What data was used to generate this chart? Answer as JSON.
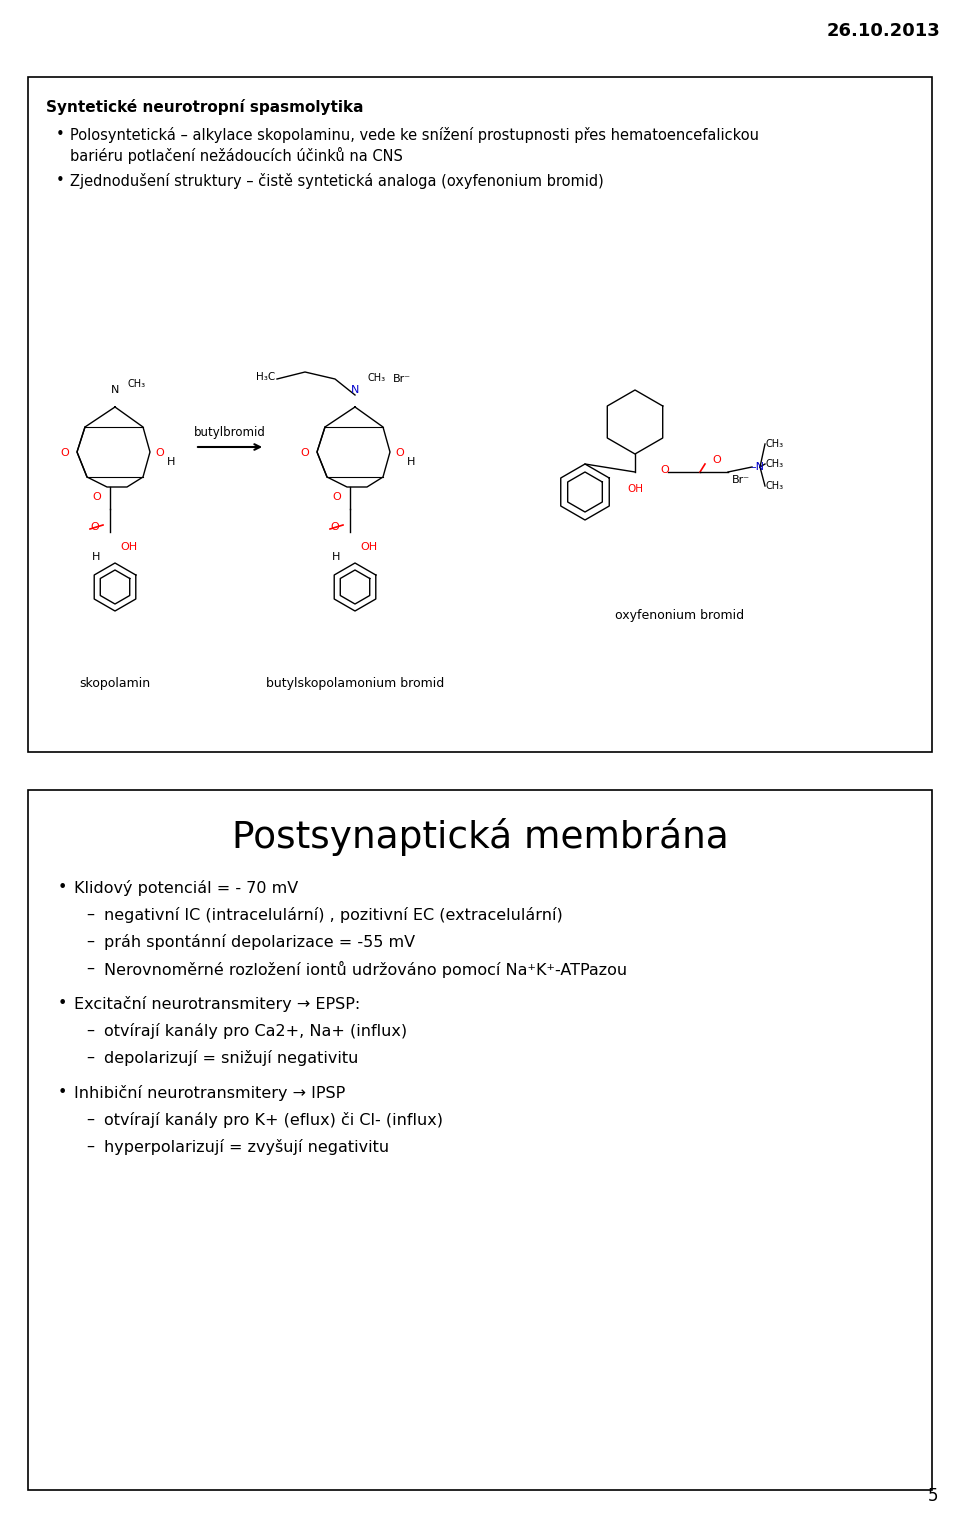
{
  "date_text": "26.10.2013",
  "page_number": "5",
  "bg_color": "#ffffff",
  "panel1": {
    "title": "Syntetické neurotropní spasmolytika",
    "bullets": [
      "Polosyntetická – alkylace skopolaminu, vede ke snížení prostupnosti přes hematoencefalickou bariéru potlačení nežádoucích účinků na CNS",
      "Zjednodušení struktury – čistě syntetická analoga (oxyfenonium bromid)"
    ],
    "chem_labels": {
      "skopolamin": "skopolamin",
      "butylbromid": "butylbromid",
      "butyl_product": "butylskopolamonium bromid",
      "oxyfenonium": "oxyfenonium bromid"
    }
  },
  "panel2": {
    "title": "Postsynaptická membrána",
    "main_bullets": [
      {
        "text": "Klidový potenciál = - 70 mV",
        "sub_bullets": [
          "negativní IC (intracelulární) , pozitivní EC (extracelulární)",
          "práh spontánní depolarizace = -55 mV",
          "Nerovnoměrné rozložení iontů udržováno pomocí Na⁺K⁺-ATPazou"
        ]
      },
      {
        "text": "Excitační neurotransmitery → EPSP:",
        "sub_bullets": [
          "otvírají kanály pro Ca2+, Na+ (influx)",
          "depolarizují = snižují negativitu"
        ]
      },
      {
        "text": "Inhibiční neurotransmitery → IPSP",
        "sub_bullets": [
          "otvírají kanály pro K+ (eflux) či Cl- (influx)",
          "hyperpolarizují = zvyšují negativitu"
        ]
      }
    ]
  }
}
